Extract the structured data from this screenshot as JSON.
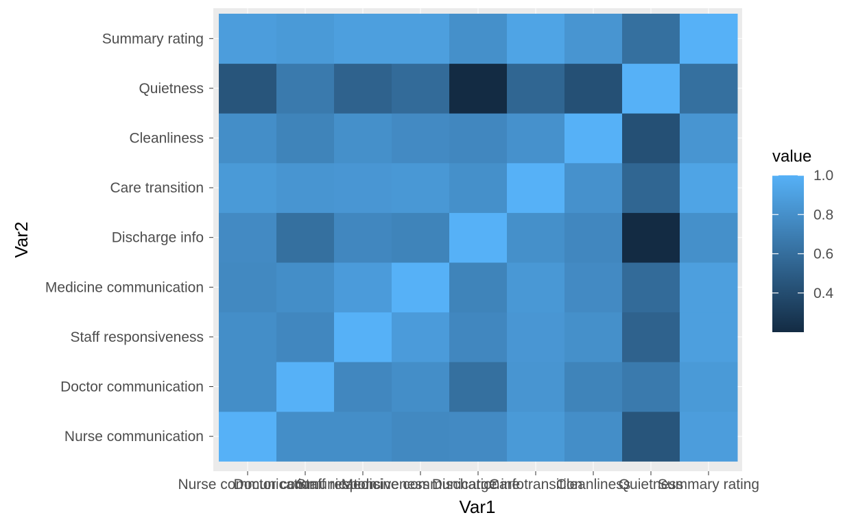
{
  "chart_data": {
    "type": "heatmap",
    "title": "",
    "xlabel": "Var1",
    "ylabel": "Var2",
    "x_categories": [
      "Nurse communication",
      "Doctor communication",
      "Staff responsiveness",
      "Medicine communication",
      "Discharge info",
      "Care transition",
      "Cleanliness",
      "Quietness",
      "Summary rating"
    ],
    "y_categories": [
      "Nurse communication",
      "Doctor communication",
      "Staff responsiveness",
      "Medicine communication",
      "Discharge info",
      "Care transition",
      "Cleanliness",
      "Quietness",
      "Summary rating"
    ],
    "values": [
      [
        1.0,
        0.79,
        0.79,
        0.76,
        0.77,
        0.86,
        0.79,
        0.45,
        0.88
      ],
      [
        0.79,
        1.0,
        0.75,
        0.79,
        0.61,
        0.83,
        0.73,
        0.67,
        0.86
      ],
      [
        0.79,
        0.75,
        1.0,
        0.87,
        0.75,
        0.84,
        0.8,
        0.53,
        0.89
      ],
      [
        0.76,
        0.79,
        0.87,
        1.0,
        0.73,
        0.85,
        0.77,
        0.58,
        0.89
      ],
      [
        0.77,
        0.61,
        0.75,
        0.73,
        1.0,
        0.8,
        0.75,
        0.2,
        0.8
      ],
      [
        0.86,
        0.83,
        0.84,
        0.85,
        0.8,
        1.0,
        0.81,
        0.55,
        0.92
      ],
      [
        0.79,
        0.73,
        0.8,
        0.77,
        0.75,
        0.81,
        1.0,
        0.42,
        0.83
      ],
      [
        0.45,
        0.67,
        0.53,
        0.58,
        0.2,
        0.55,
        0.42,
        1.0,
        0.61
      ],
      [
        0.88,
        0.86,
        0.89,
        0.89,
        0.8,
        0.92,
        0.83,
        0.61,
        1.0
      ]
    ],
    "color_low": "#132B43",
    "color_high": "#56B1F7",
    "value_range": [
      0.2,
      1.0
    ],
    "legend": {
      "title": "value",
      "breaks": [
        0.4,
        0.6,
        0.8,
        1.0
      ],
      "labels": [
        "0.4",
        "0.6",
        "0.8",
        "1.0"
      ],
      "position": "right"
    },
    "panel_background": "#EBEBEB",
    "grid": true
  }
}
